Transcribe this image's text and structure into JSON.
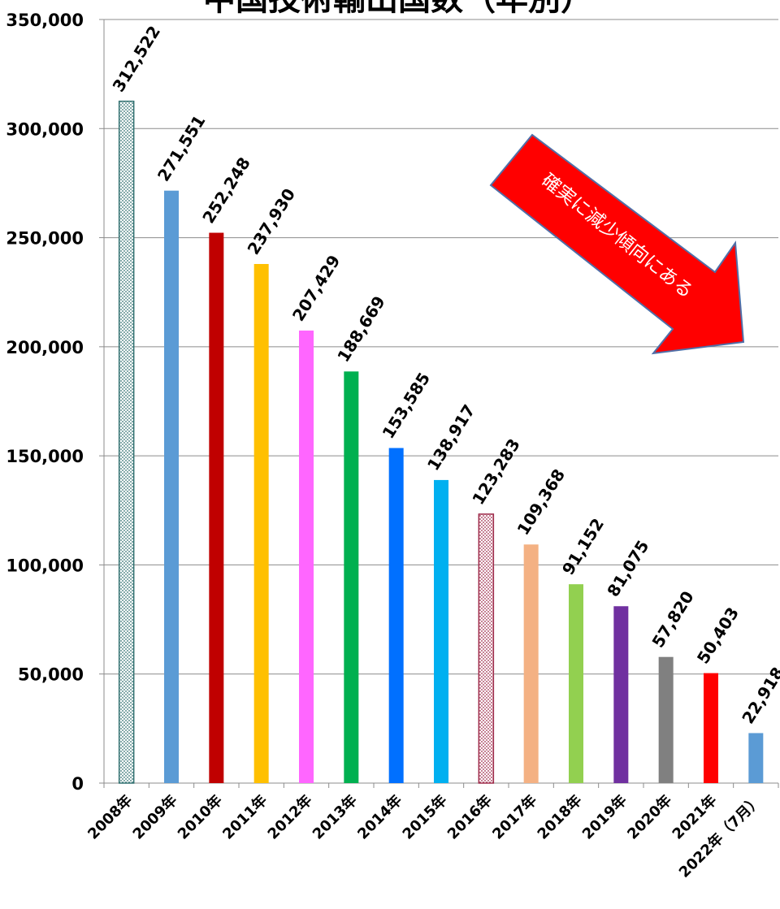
{
  "chart_data": {
    "type": "bar",
    "title": "中国技術輸出国数（年別）",
    "xlabel": "",
    "ylabel": "",
    "ylim": [
      0,
      350000
    ],
    "y_ticks": [
      "0",
      "50,000",
      "100,000",
      "150,000",
      "200,000",
      "250,000",
      "300,000",
      "350,000"
    ],
    "grid": true,
    "legend": "none",
    "categories": [
      "2008年",
      "2009年",
      "2010年",
      "2011年",
      "2012年",
      "2013年",
      "2014年",
      "2015年",
      "2016年",
      "2017年",
      "2018年",
      "2019年",
      "2020年",
      "2021年",
      "2022年（7月）"
    ],
    "values": [
      312522,
      271551,
      252248,
      237930,
      207429,
      188669,
      153585,
      138917,
      123283,
      109368,
      91152,
      81075,
      57820,
      50403,
      22918
    ],
    "data_labels": [
      "312,522",
      "271,551",
      "252,248",
      "237,930",
      "207,429",
      "188,669",
      "153,585",
      "138,917",
      "123,283",
      "109,368",
      "91,152",
      "81,075",
      "57,820",
      "50,403",
      "22,918"
    ],
    "colors": [
      "#ffffff",
      "#5b9bd5",
      "#c00000",
      "#ffc000",
      "#ff66ff",
      "#00b050",
      "#0070ff",
      "#00b0f0",
      "#ffffff",
      "#f4b183",
      "#92d050",
      "#7030a0",
      "#808080",
      "#ff0000",
      "#5b9bd5"
    ],
    "patterns": [
      "dots-teal",
      "",
      "",
      "",
      "",
      "",
      "",
      "",
      "dots-maroon",
      "",
      "",
      "",
      "",
      "",
      ""
    ],
    "annotation": {
      "text": "確実に減少傾向にある",
      "color": "#ff0000",
      "border_color": "#4f6fa8",
      "direction": "down-right"
    }
  }
}
